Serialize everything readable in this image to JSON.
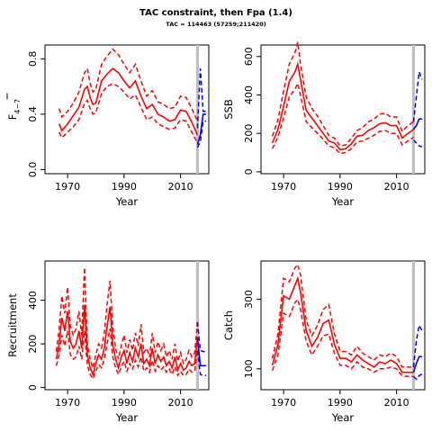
{
  "title": "TAC constraint, then Fpa (1.4)",
  "subtitle": "TAC = 114463 (57259;211420)",
  "colors": {
    "historic": "#ff0000",
    "projection": "#0000ff",
    "marker": "#bebebe"
  },
  "chart_data": [
    {
      "type": "line",
      "id": "fbar",
      "xlabel": "Year",
      "ylabel": "F",
      "ylabel_sub": "4−7",
      "xlim": [
        1962,
        2020
      ],
      "ylim": [
        -0.03,
        0.9
      ],
      "xticks": [
        1970,
        1990,
        2010
      ],
      "yticks": [
        0.0,
        0.4,
        0.8
      ],
      "ytick_labels": [
        "0.0",
        "0.4",
        "0.8"
      ],
      "marker_year": 2016,
      "historic": {
        "x": [
          1967,
          1968,
          1970,
          1972,
          1974,
          1976,
          1977,
          1978,
          1979,
          1980,
          1982,
          1984,
          1986,
          1988,
          1990,
          1992,
          1994,
          1996,
          1998,
          2000,
          2002,
          2004,
          2006,
          2008,
          2010,
          2012,
          2014,
          2016
        ],
        "mid": [
          0.33,
          0.28,
          0.33,
          0.39,
          0.45,
          0.58,
          0.6,
          0.52,
          0.47,
          0.48,
          0.64,
          0.69,
          0.73,
          0.7,
          0.64,
          0.59,
          0.64,
          0.53,
          0.44,
          0.47,
          0.4,
          0.38,
          0.35,
          0.36,
          0.43,
          0.42,
          0.34,
          0.25
        ],
        "low": [
          0.27,
          0.23,
          0.27,
          0.31,
          0.36,
          0.48,
          0.5,
          0.44,
          0.4,
          0.41,
          0.55,
          0.6,
          0.62,
          0.6,
          0.56,
          0.51,
          0.54,
          0.45,
          0.36,
          0.38,
          0.33,
          0.31,
          0.29,
          0.3,
          0.36,
          0.35,
          0.27,
          0.19
        ],
        "high": [
          0.44,
          0.38,
          0.42,
          0.48,
          0.56,
          0.7,
          0.73,
          0.62,
          0.56,
          0.58,
          0.76,
          0.82,
          0.87,
          0.83,
          0.76,
          0.7,
          0.76,
          0.64,
          0.53,
          0.57,
          0.49,
          0.47,
          0.44,
          0.45,
          0.53,
          0.52,
          0.44,
          0.35
        ]
      },
      "projection": {
        "x": [
          2016,
          2017,
          2018,
          2019
        ],
        "mid": [
          0.18,
          0.25,
          0.4,
          0.4
        ],
        "low": [
          0.16,
          0.2,
          0.35,
          0.35
        ],
        "high": [
          0.3,
          0.73,
          0.42,
          0.42
        ]
      }
    },
    {
      "type": "line",
      "id": "ssb",
      "xlabel": "Year",
      "ylabel": "SSB",
      "xlim": [
        1962,
        2020
      ],
      "ylim": [
        -10,
        660
      ],
      "xticks": [
        1970,
        1990,
        2010
      ],
      "yticks": [
        0,
        200,
        400,
        600
      ],
      "ytick_labels": [
        "0",
        "200",
        "400",
        "600"
      ],
      "marker_year": 2016,
      "historic": {
        "x": [
          1966,
          1968,
          1970,
          1972,
          1974,
          1975,
          1976,
          1978,
          1980,
          1982,
          1984,
          1986,
          1988,
          1990,
          1992,
          1994,
          1996,
          1998,
          2000,
          2002,
          2004,
          2006,
          2008,
          2010,
          2012,
          2014,
          2016
        ],
        "mid": [
          150,
          220,
          340,
          470,
          520,
          560,
          480,
          320,
          280,
          240,
          200,
          160,
          150,
          115,
          120,
          145,
          185,
          190,
          215,
          230,
          250,
          255,
          240,
          240,
          175,
          200,
          220
        ],
        "low": [
          120,
          180,
          280,
          390,
          430,
          460,
          400,
          260,
          230,
          200,
          170,
          135,
          125,
          95,
          100,
          120,
          155,
          160,
          175,
          190,
          210,
          215,
          200,
          200,
          140,
          160,
          180
        ],
        "high": [
          185,
          270,
          420,
          560,
          620,
          675,
          560,
          390,
          330,
          290,
          240,
          190,
          175,
          135,
          140,
          175,
          215,
          230,
          260,
          275,
          300,
          305,
          285,
          285,
          210,
          240,
          260
        ]
      },
      "projection": {
        "x": [
          2016,
          2017,
          2018,
          2019
        ],
        "mid": [
          220,
          240,
          275,
          275
        ],
        "low": [
          165,
          150,
          135,
          130
        ],
        "high": [
          260,
          390,
          520,
          480
        ]
      }
    },
    {
      "type": "line",
      "id": "recruitment",
      "xlabel": "Year",
      "ylabel": "Recruitment",
      "xlim": [
        1962,
        2020
      ],
      "ylim": [
        -10,
        580
      ],
      "xticks": [
        1970,
        1990,
        2010
      ],
      "yticks": [
        0,
        200,
        400
      ],
      "ytick_labels": [
        "0",
        "200",
        "400"
      ],
      "marker_year": 2016,
      "historic": {
        "x": [
          1966,
          1967,
          1968,
          1969,
          1970,
          1971,
          1972,
          1973,
          1974,
          1975,
          1976,
          1977,
          1978,
          1979,
          1980,
          1981,
          1982,
          1983,
          1984,
          1985,
          1986,
          1987,
          1988,
          1989,
          1990,
          1991,
          1992,
          1993,
          1994,
          1995,
          1996,
          1997,
          1998,
          1999,
          2000,
          2001,
          2002,
          2003,
          2004,
          2005,
          2006,
          2007,
          2008,
          2009,
          2010,
          2011,
          2012,
          2013,
          2014,
          2015,
          2016
        ],
        "mid": [
          130,
          200,
          320,
          260,
          350,
          210,
          180,
          200,
          260,
          180,
          380,
          150,
          90,
          60,
          110,
          150,
          130,
          180,
          280,
          370,
          200,
          130,
          90,
          140,
          170,
          110,
          160,
          120,
          180,
          140,
          200,
          110,
          130,
          100,
          180,
          110,
          150,
          120,
          140,
          100,
          120,
          90,
          140,
          80,
          110,
          80,
          90,
          120,
          100,
          110,
          230
        ],
        "low": [
          100,
          150,
          240,
          190,
          260,
          150,
          130,
          140,
          190,
          130,
          260,
          100,
          60,
          40,
          75,
          105,
          90,
          130,
          200,
          270,
          140,
          90,
          60,
          95,
          120,
          75,
          110,
          85,
          125,
          95,
          140,
          75,
          90,
          70,
          125,
          75,
          100,
          80,
          95,
          70,
          85,
          60,
          95,
          55,
          75,
          55,
          60,
          85,
          70,
          75,
          170
        ],
        "high": [
          165,
          270,
          420,
          340,
          460,
          280,
          240,
          270,
          350,
          240,
          550,
          200,
          130,
          90,
          150,
          200,
          180,
          250,
          380,
          490,
          280,
          180,
          130,
          190,
          240,
          160,
          220,
          170,
          250,
          190,
          290,
          160,
          180,
          140,
          250,
          160,
          210,
          170,
          200,
          140,
          170,
          130,
          200,
          120,
          160,
          110,
          130,
          170,
          140,
          160,
          300
        ]
      },
      "projection": {
        "x": [
          2016,
          2017,
          2018,
          2019
        ],
        "mid": [
          230,
          100,
          100,
          100
        ],
        "low": [
          170,
          60,
          55,
          55
        ],
        "high": [
          300,
          170,
          165,
          165
        ]
      }
    },
    {
      "type": "line",
      "id": "catch",
      "xlabel": "Year",
      "ylabel": "Catch",
      "xlim": [
        1962,
        2020
      ],
      "ylim": [
        40,
        410
      ],
      "xticks": [
        1970,
        1990,
        2010
      ],
      "yticks": [
        100,
        300
      ],
      "ytick_labels": [
        "100",
        "300"
      ],
      "marker_year": 2016,
      "historic": {
        "x": [
          1966,
          1968,
          1970,
          1972,
          1974,
          1975,
          1976,
          1978,
          1980,
          1982,
          1984,
          1986,
          1988,
          1990,
          1992,
          1994,
          1996,
          1998,
          2000,
          2002,
          2004,
          2006,
          2008,
          2010,
          2012,
          2014,
          2016
        ],
        "mid": [
          110,
          170,
          310,
          300,
          340,
          360,
          320,
          210,
          165,
          190,
          230,
          240,
          170,
          130,
          130,
          120,
          140,
          125,
          115,
          105,
          120,
          115,
          125,
          115,
          90,
          90,
          90
        ],
        "low": [
          95,
          140,
          260,
          250,
          290,
          300,
          270,
          180,
          140,
          165,
          195,
          200,
          145,
          110,
          110,
          100,
          120,
          105,
          100,
          90,
          100,
          100,
          105,
          100,
          80,
          78,
          78
        ],
        "high": [
          130,
          200,
          360,
          350,
          390,
          400,
          370,
          240,
          195,
          225,
          270,
          285,
          200,
          150,
          150,
          140,
          165,
          145,
          135,
          125,
          140,
          135,
          145,
          135,
          105,
          105,
          105
        ]
      },
      "projection": {
        "x": [
          2016,
          2017,
          2018,
          2019
        ],
        "mid": [
          90,
          115,
          135,
          135
        ],
        "low": [
          78,
          70,
          80,
          85
        ],
        "high": [
          105,
          180,
          225,
          210
        ]
      }
    }
  ]
}
